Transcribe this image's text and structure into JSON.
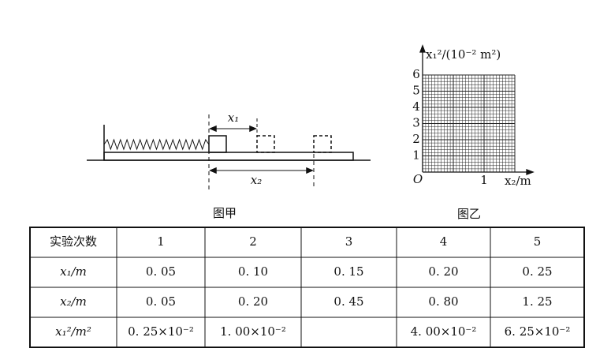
{
  "figure_a": {
    "label_1": "x₁",
    "label_2": "x₂",
    "caption": "图甲"
  },
  "figure_b": {
    "y_label": "x₁²/(10⁻² m²)",
    "x_label": "x₂/m",
    "origin": "O",
    "x_ticks": [
      "1"
    ],
    "y_ticks": [
      "1",
      "2",
      "3",
      "4",
      "5",
      "6"
    ],
    "caption": "图乙"
  },
  "table": {
    "rows": [
      [
        "实验次数",
        "1",
        "2",
        "3",
        "4",
        "5"
      ],
      [
        "x₁/m",
        "0. 05",
        "0. 10",
        "0. 15",
        "0. 20",
        "0. 25"
      ],
      [
        "x₂/m",
        "0. 05",
        "0. 20",
        "0. 45",
        "0. 80",
        "1. 25"
      ],
      [
        "x₁²/m²",
        "0. 25×10⁻²",
        "1. 00×10⁻²",
        "",
        "4. 00×10⁻²",
        "6. 25×10⁻²"
      ]
    ]
  }
}
